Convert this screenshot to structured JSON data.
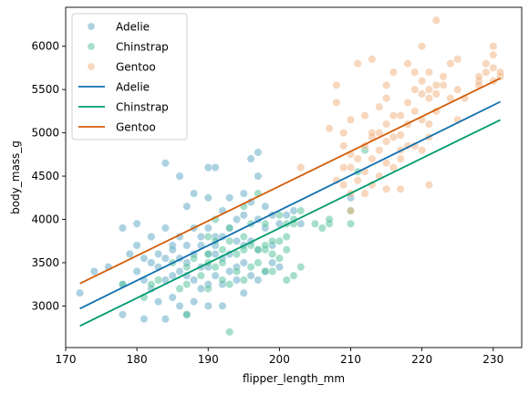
{
  "chart_data": {
    "type": "scatter",
    "xlabel": "flipper_length_mm",
    "ylabel": "body_mass_g",
    "xlim": [
      170,
      234
    ],
    "ylim": [
      2520,
      6450
    ],
    "xticks": [
      170,
      180,
      190,
      200,
      210,
      220,
      230
    ],
    "yticks": [
      3000,
      3500,
      4000,
      4500,
      5000,
      5500,
      6000
    ],
    "grid": false,
    "legend_position": "top-left",
    "scatter_series": [
      {
        "name": "Adelie",
        "color": "#5aa5c4",
        "points": [
          [
            172,
            3150
          ],
          [
            174,
            3400
          ],
          [
            176,
            3450
          ],
          [
            178,
            2900
          ],
          [
            178,
            3250
          ],
          [
            178,
            3900
          ],
          [
            179,
            3600
          ],
          [
            180,
            3400
          ],
          [
            180,
            3700
          ],
          [
            180,
            3950
          ],
          [
            181,
            2850
          ],
          [
            181,
            3300
          ],
          [
            181,
            3550
          ],
          [
            182,
            3200
          ],
          [
            182,
            3500
          ],
          [
            182,
            3800
          ],
          [
            183,
            3050
          ],
          [
            183,
            3450
          ],
          [
            183,
            3600
          ],
          [
            184,
            2850
          ],
          [
            184,
            3300
          ],
          [
            184,
            3550
          ],
          [
            184,
            3900
          ],
          [
            184,
            4650
          ],
          [
            185,
            3100
          ],
          [
            185,
            3350
          ],
          [
            185,
            3700
          ],
          [
            185,
            3650
          ],
          [
            186,
            3000
          ],
          [
            186,
            3400
          ],
          [
            186,
            3550
          ],
          [
            186,
            3800
          ],
          [
            186,
            4500
          ],
          [
            187,
            2900
          ],
          [
            187,
            3350
          ],
          [
            187,
            3500
          ],
          [
            187,
            3700
          ],
          [
            187,
            4150
          ],
          [
            188,
            3050
          ],
          [
            188,
            3300
          ],
          [
            188,
            3600
          ],
          [
            188,
            3900
          ],
          [
            188,
            4300
          ],
          [
            189,
            3200
          ],
          [
            189,
            3450
          ],
          [
            189,
            3700
          ],
          [
            189,
            3800
          ],
          [
            190,
            3000
          ],
          [
            190,
            3250
          ],
          [
            190,
            3450
          ],
          [
            190,
            3600
          ],
          [
            190,
            3900
          ],
          [
            190,
            4250
          ],
          [
            190,
            4600
          ],
          [
            191,
            3350
          ],
          [
            191,
            3600
          ],
          [
            191,
            3700
          ],
          [
            191,
            3800
          ],
          [
            191,
            4600
          ],
          [
            192,
            3000
          ],
          [
            192,
            3250
          ],
          [
            192,
            3550
          ],
          [
            192,
            3800
          ],
          [
            192,
            4100
          ],
          [
            193,
            3400
          ],
          [
            193,
            3600
          ],
          [
            193,
            3900
          ],
          [
            193,
            4250
          ],
          [
            194,
            3300
          ],
          [
            194,
            3450
          ],
          [
            194,
            3750
          ],
          [
            194,
            4000
          ],
          [
            195,
            3150
          ],
          [
            195,
            3500
          ],
          [
            195,
            3700
          ],
          [
            195,
            4050
          ],
          [
            195,
            4300
          ],
          [
            196,
            3350
          ],
          [
            196,
            3750
          ],
          [
            196,
            4200
          ],
          [
            196,
            4700
          ],
          [
            197,
            3300
          ],
          [
            197,
            3650
          ],
          [
            197,
            4000
          ],
          [
            197,
            4500
          ],
          [
            197,
            4775
          ],
          [
            198,
            3400
          ],
          [
            198,
            3900
          ],
          [
            198,
            4150
          ],
          [
            199,
            3500
          ],
          [
            199,
            3700
          ],
          [
            199,
            4050
          ],
          [
            200,
            3450
          ],
          [
            200,
            3950
          ],
          [
            201,
            4050
          ],
          [
            202,
            4100
          ],
          [
            203,
            3950
          ],
          [
            210,
            4250
          ]
        ]
      },
      {
        "name": "Chinstrap",
        "color": "#4dbf95",
        "points": [
          [
            178,
            3250
          ],
          [
            181,
            3100
          ],
          [
            182,
            3250
          ],
          [
            183,
            3300
          ],
          [
            185,
            3500
          ],
          [
            186,
            3200
          ],
          [
            187,
            2900
          ],
          [
            187,
            3250
          ],
          [
            187,
            3450
          ],
          [
            188,
            3550
          ],
          [
            189,
            3350
          ],
          [
            190,
            3200
          ],
          [
            190,
            3500
          ],
          [
            190,
            3600
          ],
          [
            190,
            3800
          ],
          [
            191,
            3450
          ],
          [
            191,
            3750
          ],
          [
            191,
            4000
          ],
          [
            192,
            3300
          ],
          [
            192,
            3500
          ],
          [
            192,
            3650
          ],
          [
            193,
            2700
          ],
          [
            193,
            3250
          ],
          [
            193,
            3750
          ],
          [
            193,
            3900
          ],
          [
            194,
            3400
          ],
          [
            194,
            3600
          ],
          [
            195,
            3300
          ],
          [
            195,
            3650
          ],
          [
            195,
            3800
          ],
          [
            195,
            4150
          ],
          [
            196,
            3450
          ],
          [
            196,
            3700
          ],
          [
            196,
            3950
          ],
          [
            197,
            3500
          ],
          [
            197,
            3650
          ],
          [
            197,
            4300
          ],
          [
            198,
            3400
          ],
          [
            198,
            3650
          ],
          [
            198,
            3700
          ],
          [
            198,
            3950
          ],
          [
            199,
            3400
          ],
          [
            199,
            3600
          ],
          [
            199,
            3750
          ],
          [
            200,
            3550
          ],
          [
            200,
            3750
          ],
          [
            200,
            4050
          ],
          [
            201,
            3300
          ],
          [
            201,
            3650
          ],
          [
            201,
            3800
          ],
          [
            201,
            3950
          ],
          [
            202,
            3350
          ],
          [
            202,
            3950
          ],
          [
            202,
            4000
          ],
          [
            203,
            3450
          ],
          [
            203,
            4100
          ],
          [
            205,
            3950
          ],
          [
            206,
            3900
          ],
          [
            207,
            3950
          ],
          [
            207,
            4000
          ],
          [
            210,
            3950
          ],
          [
            210,
            4100
          ],
          [
            211,
            4550
          ],
          [
            212,
            4800
          ]
        ]
      },
      {
        "name": "Gentoo",
        "color": "#f0b07c",
        "points": [
          [
            203,
            4600
          ],
          [
            207,
            5050
          ],
          [
            208,
            4450
          ],
          [
            208,
            5350
          ],
          [
            208,
            5550
          ],
          [
            209,
            4400
          ],
          [
            209,
            4600
          ],
          [
            209,
            4850
          ],
          [
            209,
            5000
          ],
          [
            210,
            4100
          ],
          [
            210,
            4300
          ],
          [
            210,
            4600
          ],
          [
            210,
            4750
          ],
          [
            210,
            5150
          ],
          [
            211,
            4450
          ],
          [
            211,
            4700
          ],
          [
            211,
            5800
          ],
          [
            212,
            4300
          ],
          [
            212,
            4550
          ],
          [
            212,
            4850
          ],
          [
            212,
            5200
          ],
          [
            213,
            4400
          ],
          [
            213,
            4700
          ],
          [
            213,
            4950
          ],
          [
            213,
            5000
          ],
          [
            213,
            5850
          ],
          [
            214,
            4500
          ],
          [
            214,
            4800
          ],
          [
            214,
            5000
          ],
          [
            214,
            5300
          ],
          [
            215,
            4350
          ],
          [
            215,
            4650
          ],
          [
            215,
            4900
          ],
          [
            215,
            5100
          ],
          [
            215,
            5400
          ],
          [
            215,
            5550
          ],
          [
            216,
            4600
          ],
          [
            216,
            4950
          ],
          [
            216,
            5200
          ],
          [
            216,
            5700
          ],
          [
            217,
            4350
          ],
          [
            217,
            4700
          ],
          [
            217,
            4800
          ],
          [
            217,
            4975
          ],
          [
            217,
            5200
          ],
          [
            218,
            4850
          ],
          [
            218,
            5100
          ],
          [
            218,
            5350
          ],
          [
            218,
            5800
          ],
          [
            219,
            4850
          ],
          [
            219,
            5250
          ],
          [
            219,
            5500
          ],
          [
            219,
            5700
          ],
          [
            220,
            4800
          ],
          [
            220,
            5150
          ],
          [
            220,
            5450
          ],
          [
            220,
            5600
          ],
          [
            220,
            6000
          ],
          [
            221,
            4400
          ],
          [
            221,
            4950
          ],
          [
            221,
            5100
          ],
          [
            221,
            5400
          ],
          [
            221,
            5500
          ],
          [
            221,
            5700
          ],
          [
            222,
            5250
          ],
          [
            222,
            5450
          ],
          [
            222,
            5550
          ],
          [
            222,
            6300
          ],
          [
            223,
            5550
          ],
          [
            223,
            5650
          ],
          [
            224,
            5400
          ],
          [
            224,
            5800
          ],
          [
            225,
            5150
          ],
          [
            225,
            5500
          ],
          [
            225,
            5850
          ],
          [
            226,
            5400
          ],
          [
            228,
            5600
          ],
          [
            228,
            5650
          ],
          [
            228,
            5550
          ],
          [
            229,
            5700
          ],
          [
            229,
            5800
          ],
          [
            230,
            5600
          ],
          [
            230,
            5750
          ],
          [
            230,
            5900
          ],
          [
            230,
            6000
          ],
          [
            231,
            5650
          ],
          [
            231,
            5700
          ]
        ]
      }
    ],
    "line_series": [
      {
        "name": "Adelie",
        "color": "#0f6fae",
        "x": [
          172,
          231
        ],
        "y": [
          2970,
          5360
        ]
      },
      {
        "name": "Chinstrap",
        "color": "#009a6e",
        "x": [
          172,
          231
        ],
        "y": [
          2770,
          5150
        ]
      },
      {
        "name": "Gentoo",
        "color": "#d25d0a",
        "x": [
          172,
          231
        ],
        "y": [
          3260,
          5630
        ]
      }
    ],
    "legend": [
      {
        "kind": "marker",
        "label": "Adelie",
        "color": "#5aa5c4"
      },
      {
        "kind": "marker",
        "label": "Chinstrap",
        "color": "#4dbf95"
      },
      {
        "kind": "marker",
        "label": "Gentoo",
        "color": "#f0b07c"
      },
      {
        "kind": "line",
        "label": "Adelie",
        "color": "#0f6fae"
      },
      {
        "kind": "line",
        "label": "Chinstrap",
        "color": "#009a6e"
      },
      {
        "kind": "line",
        "label": "Gentoo",
        "color": "#d25d0a"
      }
    ]
  }
}
